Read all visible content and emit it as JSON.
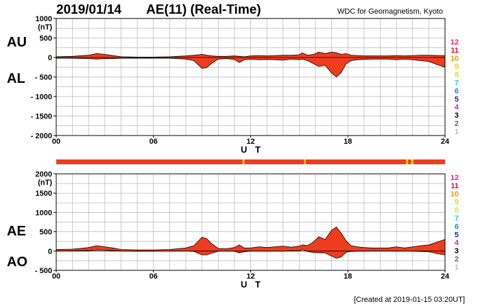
{
  "header": {
    "date": "2019/01/14",
    "title": "AE(11) (Real-Time)",
    "source": "WDC for Geomagnetism, Kyoto",
    "created": "[Created at 2019-01-15 03:20UT]"
  },
  "legend": {
    "levels": [
      {
        "label": "12",
        "color": "#ff1493"
      },
      {
        "label": "11",
        "color": "#e8112d"
      },
      {
        "label": "10",
        "color": "#ff9900"
      },
      {
        "label": "9",
        "color": "#ffcc00"
      },
      {
        "label": "8",
        "color": "#ccee22"
      },
      {
        "label": "7",
        "color": "#22ccdd"
      },
      {
        "label": "6",
        "color": "#1e88e5"
      },
      {
        "label": "5",
        "color": "#2222aa"
      },
      {
        "label": "4",
        "color": "#cc22cc"
      },
      {
        "label": "3",
        "color": "#000000"
      },
      {
        "label": "2",
        "color": "#666666"
      },
      {
        "label": "1",
        "color": "#bbbbbb"
      }
    ]
  },
  "colors": {
    "fill": "#f03c1e",
    "outline": "#000000",
    "grid": "#b4b4b4",
    "status_base": "#f03c1e",
    "status_flag": "#ffcc00"
  },
  "chart_data": [
    {
      "type": "area",
      "panel": "AU/AL",
      "labels_upper": "AU",
      "labels_lower": "AL",
      "unit": "(nT)",
      "xlabel": "U T",
      "xlim": [
        0,
        24
      ],
      "ylim": [
        -2000,
        1000
      ],
      "xticks": [
        "00",
        "06",
        "12",
        "18",
        "24"
      ],
      "yticks": [
        "1000",
        "500",
        "0",
        "- 500",
        "- 1000",
        "- 1500",
        "- 2000"
      ],
      "ytick_values": [
        1000,
        500,
        0,
        -500,
        -1000,
        -1500,
        -2000
      ],
      "x": [
        0,
        1,
        2,
        2.5,
        3,
        3.5,
        4,
        5,
        6,
        7,
        8,
        8.5,
        8.8,
        9,
        9.3,
        9.6,
        10,
        10.5,
        11,
        11.3,
        11.6,
        12,
        12.5,
        13,
        13.5,
        14,
        14.5,
        15,
        15.2,
        15.5,
        15.9,
        16.2,
        16.6,
        17,
        17.3,
        17.6,
        17.9,
        18.2,
        18.6,
        19,
        19.5,
        20,
        20.5,
        21,
        21.5,
        22,
        22.5,
        23,
        23.5,
        24
      ],
      "au": [
        20,
        30,
        60,
        100,
        80,
        50,
        20,
        10,
        10,
        20,
        40,
        60,
        70,
        80,
        60,
        40,
        30,
        30,
        40,
        30,
        20,
        40,
        50,
        40,
        50,
        60,
        60,
        70,
        120,
        60,
        80,
        140,
        100,
        140,
        120,
        80,
        100,
        60,
        50,
        40,
        40,
        40,
        40,
        50,
        40,
        50,
        60,
        60,
        50,
        50
      ],
      "al": [
        -20,
        -20,
        -30,
        -40,
        -30,
        -30,
        -20,
        -20,
        -20,
        -20,
        -40,
        -80,
        -200,
        -280,
        -260,
        -150,
        -40,
        -30,
        -50,
        -130,
        -60,
        -40,
        -60,
        -50,
        -60,
        -70,
        -40,
        -60,
        -40,
        -80,
        -160,
        -230,
        -200,
        -400,
        -500,
        -380,
        -160,
        -80,
        -60,
        -50,
        -40,
        -40,
        -40,
        -60,
        -40,
        -60,
        -80,
        -100,
        -180,
        -250
      ]
    },
    {
      "type": "area",
      "panel": "AE/AO",
      "labels_upper": "AE",
      "labels_lower": "AO",
      "unit": "(nT)",
      "xlabel": "U T",
      "xlim": [
        0,
        24
      ],
      "ylim": [
        -500,
        2000
      ],
      "xticks": [
        "00",
        "06",
        "12",
        "18",
        "24"
      ],
      "yticks": [
        "2000",
        "1500",
        "1000",
        "500",
        "0",
        "- 500"
      ],
      "ytick_values": [
        2000,
        1500,
        1000,
        500,
        0,
        -500
      ],
      "x": [
        0,
        1,
        2,
        2.5,
        3,
        3.5,
        4,
        5,
        6,
        7,
        8,
        8.5,
        8.8,
        9,
        9.3,
        9.6,
        10,
        10.5,
        11,
        11.3,
        11.6,
        12,
        12.5,
        13,
        13.5,
        14,
        14.5,
        15,
        15.2,
        15.5,
        15.9,
        16.2,
        16.6,
        17,
        17.3,
        17.6,
        17.9,
        18.2,
        18.6,
        19,
        19.5,
        20,
        20.5,
        21,
        21.5,
        22,
        22.5,
        23,
        23.5,
        24
      ],
      "ae": [
        40,
        50,
        90,
        140,
        110,
        80,
        40,
        30,
        30,
        40,
        80,
        140,
        270,
        360,
        320,
        190,
        70,
        60,
        90,
        160,
        80,
        80,
        110,
        90,
        110,
        130,
        100,
        130,
        160,
        140,
        240,
        370,
        300,
        540,
        620,
        460,
        260,
        140,
        110,
        90,
        80,
        80,
        80,
        110,
        80,
        110,
        140,
        160,
        230,
        300
      ],
      "ao": [
        0,
        5,
        15,
        30,
        25,
        10,
        0,
        -5,
        -5,
        0,
        0,
        -10,
        -65,
        -100,
        -100,
        -55,
        -5,
        0,
        -5,
        -50,
        -20,
        0,
        -5,
        -5,
        -5,
        -5,
        10,
        5,
        40,
        -10,
        -40,
        -45,
        -50,
        -130,
        -190,
        -150,
        -30,
        -10,
        -5,
        -5,
        0,
        0,
        0,
        -5,
        0,
        -5,
        -10,
        -20,
        -65,
        -100
      ]
    }
  ],
  "status_bar": {
    "flag_hours": [
      11.5,
      11.62,
      15.3,
      15.4,
      21.6,
      21.72,
      21.9,
      22.05
    ]
  }
}
